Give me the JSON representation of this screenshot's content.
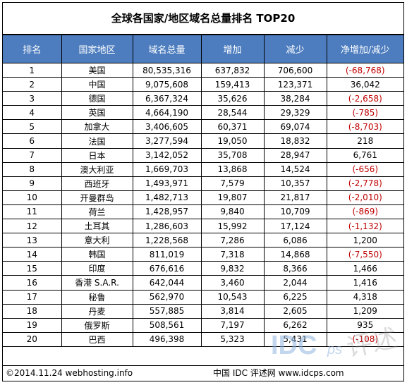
{
  "title": "全球各国家/地区域名总量排名 TOP20",
  "headers": [
    "排名",
    "国家地区",
    "域名总量",
    "增加",
    "减少",
    "净增加/减少"
  ],
  "rows": [
    [
      "1",
      "美国",
      "80,535,316",
      "637,832",
      "706,600",
      "(-68,768)"
    ],
    [
      "2",
      "中国",
      "9,075,608",
      "159,413",
      "123,371",
      "36,042"
    ],
    [
      "3",
      "德国",
      "6,367,324",
      "35,626",
      "38,284",
      "(-2,658)"
    ],
    [
      "4",
      "英国",
      "4,664,190",
      "28,544",
      "29,329",
      "(-785)"
    ],
    [
      "5",
      "加拿大",
      "3,406,605",
      "60,371",
      "69,074",
      "(-8,703)"
    ],
    [
      "6",
      "法国",
      "3,277,594",
      "19,050",
      "18,832",
      "218"
    ],
    [
      "7",
      "日本",
      "3,142,052",
      "35,708",
      "28,947",
      "6,761"
    ],
    [
      "8",
      "澳大利亚",
      "1,669,703",
      "13,868",
      "14,524",
      "(-656)"
    ],
    [
      "9",
      "西班牙",
      "1,493,971",
      "7,579",
      "10,357",
      "(-2,778)"
    ],
    [
      "10",
      "开曼群岛",
      "1,482,713",
      "19,807",
      "21,817",
      "(-2,010)"
    ],
    [
      "11",
      "荷兰",
      "1,428,957",
      "9,840",
      "10,709",
      "(-869)"
    ],
    [
      "12",
      "土耳其",
      "1,286,603",
      "15,992",
      "17,124",
      "(-1,132)"
    ],
    [
      "13",
      "意大利",
      "1,228,568",
      "7,286",
      "6,086",
      "1,200"
    ],
    [
      "14",
      "韩国",
      "811,019",
      "7,318",
      "14,868",
      "(-7,550)"
    ],
    [
      "15",
      "印度",
      "676,616",
      "9,832",
      "8,366",
      "1,466"
    ],
    [
      "16",
      "香港 S.A.R.",
      "642,044",
      "3,460",
      "2,044",
      "1,416"
    ],
    [
      "17",
      "秘鲁",
      "562,970",
      "10,543",
      "6,225",
      "4,318"
    ],
    [
      "18",
      "丹麦",
      "557,885",
      "3,814",
      "2,605",
      "1,209"
    ],
    [
      "19",
      "俄罗斯",
      "508,561",
      "7,197",
      "6,262",
      "935"
    ],
    [
      "20",
      "巴西",
      "496,398",
      "5,323",
      "5,431",
      "(-108)"
    ]
  ],
  "footer": {
    "left": "©2014.11.24  webhosting.info",
    "right": "中国 IDC 评述网 www.idcps.com"
  },
  "watermark_text": "IDCps 评述",
  "colors": {
    "header_bg": "#4d7dbf",
    "negative": "#c00000"
  }
}
